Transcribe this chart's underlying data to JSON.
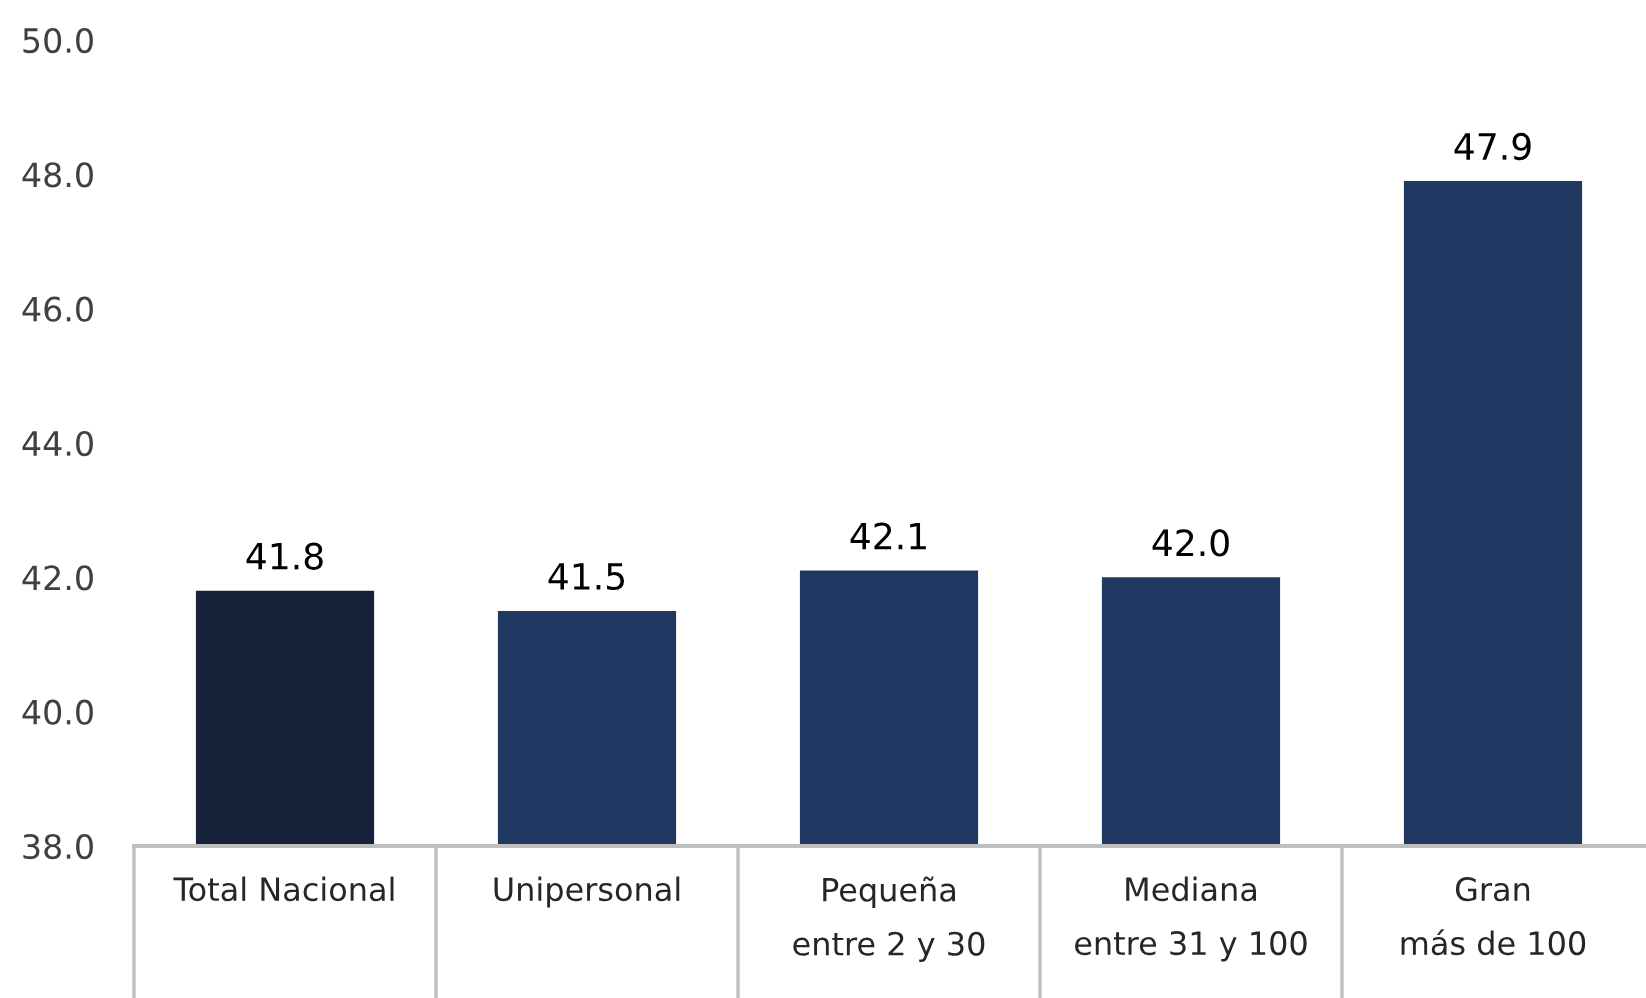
{
  "chart_data": {
    "type": "bar",
    "categories": [
      "Total Nacional",
      "Unipersonal",
      "Pequeña\nentre 2 y 30",
      "Mediana\nentre 31 y 100",
      "Gran\nmás de 100"
    ],
    "values": [
      41.8,
      41.5,
      42.1,
      42.0,
      47.9
    ],
    "value_labels": [
      "41.8",
      "41.5",
      "42.1",
      "42.0",
      "47.9"
    ],
    "colors": [
      "#172139",
      "#213862",
      "#213862",
      "#213862",
      "#213862"
    ],
    "ylim": [
      38,
      50
    ],
    "yticks": [
      {
        "value": 38,
        "label": "38.0"
      },
      {
        "value": 40,
        "label": "40.0"
      },
      {
        "value": 42,
        "label": "42.0"
      },
      {
        "value": 44,
        "label": "44.0"
      },
      {
        "value": 46,
        "label": "46.0"
      },
      {
        "value": 48,
        "label": "48.0"
      },
      {
        "value": 50,
        "label": "50.0"
      }
    ]
  }
}
